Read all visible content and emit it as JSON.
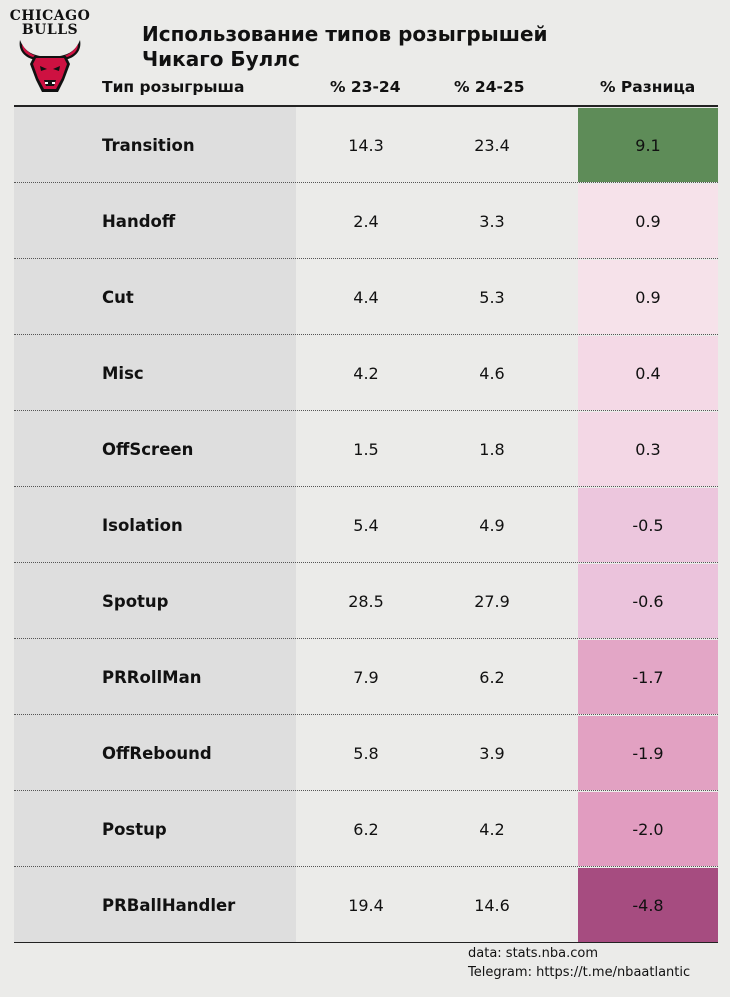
{
  "logo": {
    "line1": "CHICAGO",
    "line2": "BULLS",
    "icon": "bull-head-icon",
    "colors": {
      "primary": "#ce1141",
      "dark": "#111111"
    }
  },
  "title": {
    "line1": "Использование типов розыгрышей",
    "line2": "Чикаго Буллс"
  },
  "chart_data": {
    "type": "table",
    "columns": [
      "Тип розыгрыша",
      "% 23-24",
      "% 24-25",
      "% Разница"
    ],
    "rows": [
      {
        "type": "Transition",
        "v2324": "14.3",
        "v2425": "23.4",
        "diff": "9.1",
        "color": "#5e8c58"
      },
      {
        "type": "Handoff",
        "v2324": "2.4",
        "v2425": "3.3",
        "diff": "0.9",
        "color": "#f6e2ea"
      },
      {
        "type": "Cut",
        "v2324": "4.4",
        "v2425": "5.3",
        "diff": "0.9",
        "color": "#f6e2ea"
      },
      {
        "type": "Misc",
        "v2324": "4.2",
        "v2425": "4.6",
        "diff": "0.4",
        "color": "#f4d9e6"
      },
      {
        "type": "OffScreen",
        "v2324": "1.5",
        "v2425": "1.8",
        "diff": "0.3",
        "color": "#f3d7e5"
      },
      {
        "type": "Isolation",
        "v2324": "5.4",
        "v2425": "4.9",
        "diff": "-0.5",
        "color": "#ecc6dd"
      },
      {
        "type": "Spotup",
        "v2324": "28.5",
        "v2425": "27.9",
        "diff": "-0.6",
        "color": "#ebc3dc"
      },
      {
        "type": "PRRollMan",
        "v2324": "7.9",
        "v2425": "6.2",
        "diff": "-1.7",
        "color": "#e3a6c6"
      },
      {
        "type": "OffRebound",
        "v2324": "5.8",
        "v2425": "3.9",
        "diff": "-1.9",
        "color": "#e2a1c2"
      },
      {
        "type": "Postup",
        "v2324": "6.2",
        "v2425": "4.2",
        "diff": "-2.0",
        "color": "#e19cc0"
      },
      {
        "type": "PRBallHandler",
        "v2324": "19.4",
        "v2425": "14.6",
        "diff": "-4.8",
        "color": "#a64c80"
      }
    ]
  },
  "footer": {
    "source": "data: stats.nba.com",
    "telegram": "Telegram: https://t.me/nbaatlantic"
  }
}
